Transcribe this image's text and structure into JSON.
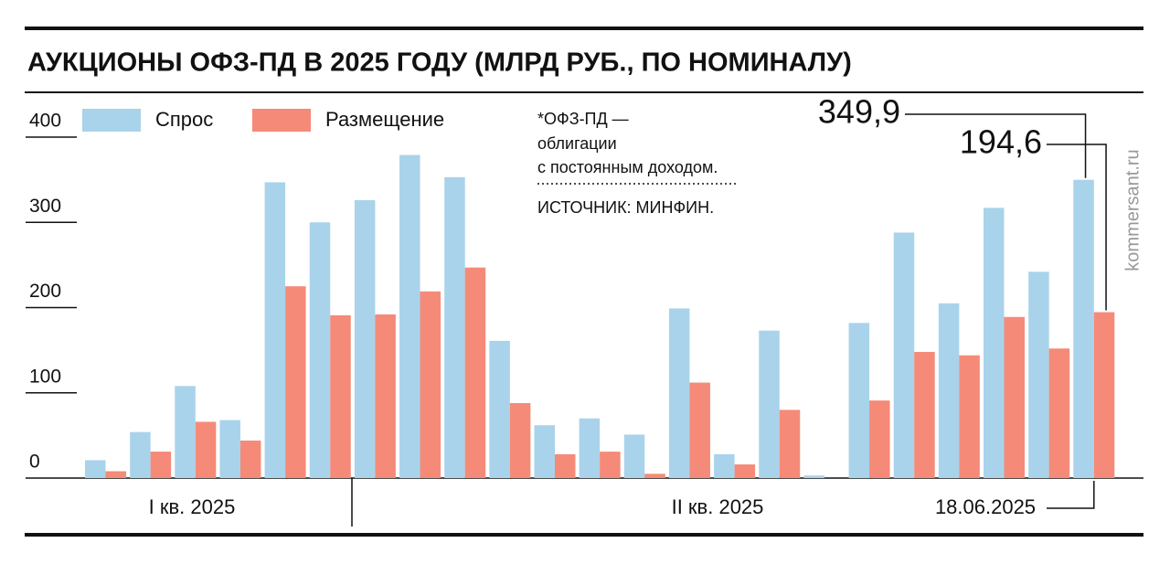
{
  "chart_data": {
    "type": "bar",
    "title": "АУКЦИОНЫ ОФЗ-ПД В 2025 ГОДУ (МЛРД РУБ., ПО НОМИНАЛУ)",
    "categories": [
      null,
      null,
      null,
      null,
      null,
      null,
      null,
      null,
      null,
      null,
      null,
      null,
      null,
      null,
      null,
      null,
      null,
      null,
      null,
      null,
      null,
      null,
      "18.06.2025"
    ],
    "quarter_labels": [
      "I кв. 2025",
      "II кв. 2025"
    ],
    "series": [
      {
        "name": "Спрос",
        "color": "#a9d3ea",
        "values": [
          21,
          54,
          108,
          68,
          347,
          300,
          326,
          379,
          353,
          161,
          62,
          70,
          51,
          199,
          28,
          173,
          3,
          182,
          288,
          205,
          317,
          242,
          349.9
        ],
        "value_labels": [
          null,
          null,
          null,
          null,
          null,
          null,
          null,
          null,
          null,
          null,
          null,
          null,
          null,
          null,
          null,
          null,
          null,
          null,
          null,
          null,
          null,
          null,
          "349,9"
        ]
      },
      {
        "name": "Размещение",
        "color": "#f58a78",
        "values": [
          8,
          31,
          66,
          44,
          225,
          191,
          192,
          219,
          247,
          88,
          28,
          31,
          5,
          112,
          16,
          80,
          0,
          91,
          148,
          144,
          189,
          152,
          194.6
        ],
        "value_labels": [
          null,
          null,
          null,
          null,
          null,
          null,
          null,
          null,
          null,
          null,
          null,
          null,
          null,
          null,
          null,
          null,
          null,
          null,
          null,
          null,
          null,
          null,
          "194,6"
        ]
      }
    ],
    "ylim": [
      0,
      400
    ],
    "yticks": [
      0,
      100,
      200,
      300,
      400
    ],
    "note": [
      "*ОФЗ-ПД —",
      "облигации",
      "с постоянным доходом."
    ],
    "source": "ИСТОЧНИК: МИНФИН.",
    "watermark": "kommersant.ru"
  }
}
